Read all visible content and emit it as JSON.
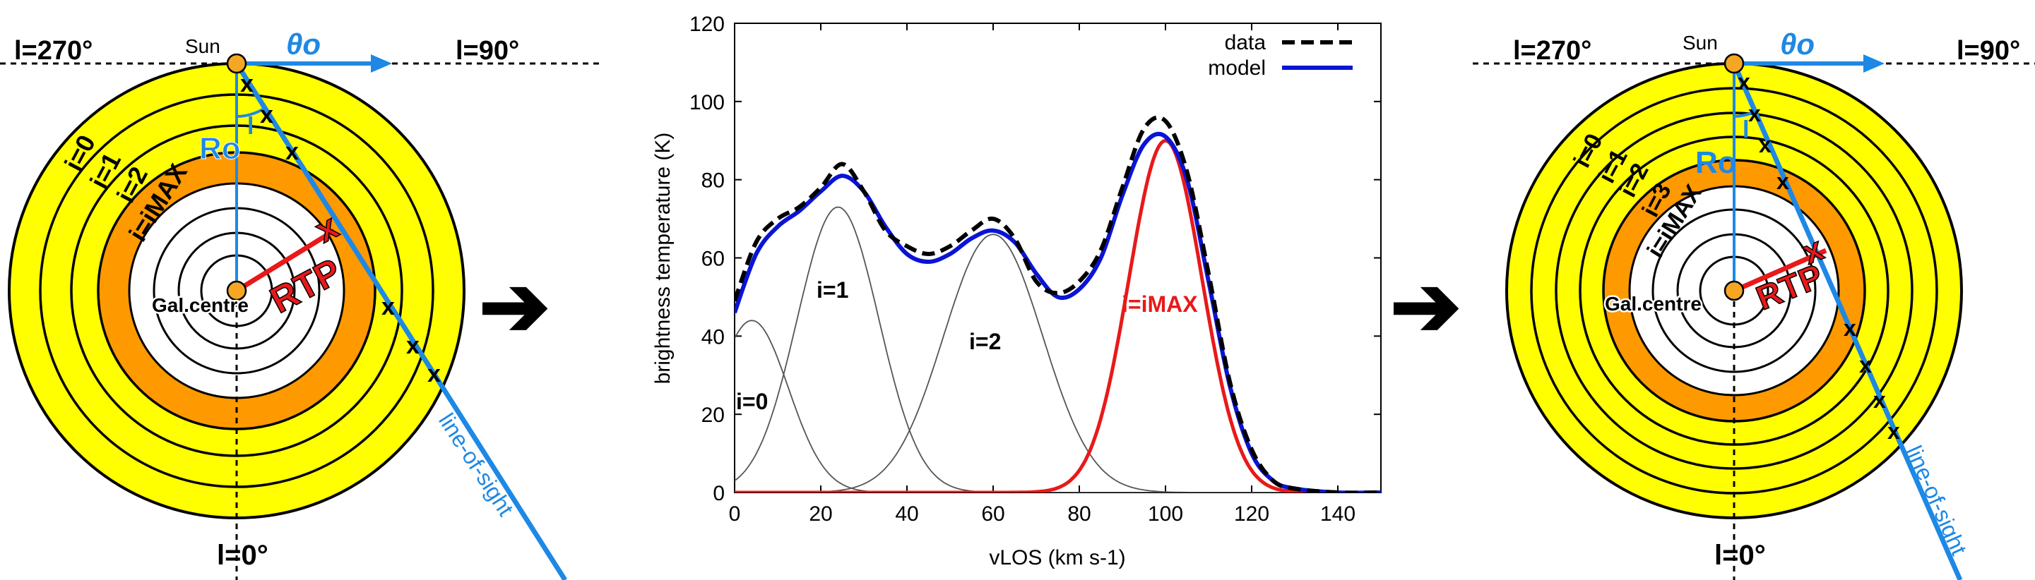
{
  "left_panel": {
    "label_l270": "l=270°",
    "label_l90": "l=90°",
    "label_l0": "l=0°",
    "label_sun": "Sun",
    "label_theta0": "θo",
    "label_r0": "Ro",
    "label_l": "l",
    "label_rtp": "RTP",
    "label_gal_centre": "Gal.centre",
    "label_los": "line-of-sight",
    "x_mark": "x",
    "ring_labels": [
      "i=0",
      "i=1",
      "i=2",
      "i=iMAX"
    ],
    "colors": {
      "ring_yellow": "#ffff00",
      "ring_orange": "#ff9900",
      "los": "#1e88e5",
      "rtp": "#e8191a",
      "sun": "#f5a623"
    }
  },
  "right_panel": {
    "label_l270": "l=270°",
    "label_l90": "l=90°",
    "label_l0": "l=0°",
    "label_sun": "Sun",
    "label_theta0": "θo",
    "label_r0": "Ro",
    "label_l": "l",
    "label_rtp": "RTP",
    "label_gal_centre": "Gal.centre",
    "label_los": "line-of-sight",
    "x_mark": "x",
    "ring_labels": [
      "i=0",
      "i=1",
      "i=2",
      "i=3",
      "i=iMAX"
    ]
  },
  "arrows": {
    "arrow_glyph": "➔"
  },
  "chart_data": {
    "type": "line",
    "xlabel": "vLOS (km s-1)",
    "ylabel": "brightness temperature (K)",
    "xlim": [
      0,
      150
    ],
    "ylim": [
      0,
      120
    ],
    "xticks": [
      0,
      20,
      40,
      60,
      80,
      100,
      120,
      140
    ],
    "yticks": [
      0,
      20,
      40,
      60,
      80,
      100,
      120
    ],
    "legend": {
      "position": "top-right",
      "entries": [
        "data",
        "model"
      ]
    },
    "components": [
      {
        "name": "i=0",
        "amplitude": 44,
        "center": 4,
        "sigma": 8.5
      },
      {
        "name": "i=1",
        "amplitude": 73,
        "center": 24,
        "sigma": 9.5
      },
      {
        "name": "i=2",
        "amplitude": 66,
        "center": 60,
        "sigma": 11.5
      },
      {
        "name": "i=iMAX",
        "amplitude": 90,
        "center": 100,
        "sigma": 8.5
      }
    ],
    "series": [
      {
        "name": "data",
        "style": "dashed",
        "color": "#000000",
        "x": [
          0,
          5,
          10,
          15,
          20,
          25,
          30,
          35,
          40,
          45,
          50,
          55,
          60,
          65,
          70,
          75,
          80,
          85,
          90,
          95,
          100,
          105,
          110,
          115,
          120,
          125,
          130,
          140,
          150
        ],
        "values": [
          49,
          64,
          70,
          73,
          78,
          84,
          77,
          67,
          63,
          61,
          63,
          67,
          70,
          65,
          54,
          51,
          54,
          62,
          78,
          93,
          95,
          82,
          56,
          28,
          11,
          3,
          1,
          0,
          0
        ]
      },
      {
        "name": "model",
        "style": "solid",
        "color": "#0a14d6",
        "x": [
          0,
          5,
          10,
          15,
          20,
          25,
          30,
          35,
          40,
          45,
          50,
          55,
          60,
          65,
          70,
          75,
          80,
          85,
          90,
          95,
          100,
          105,
          110,
          115,
          120,
          125,
          130,
          140,
          150
        ],
        "values": [
          46,
          61,
          68,
          72,
          77,
          81,
          77,
          68,
          61,
          59,
          61,
          65,
          67,
          64,
          56,
          50,
          52,
          60,
          76,
          89,
          91,
          80,
          54,
          27,
          10,
          3,
          1,
          0,
          0
        ]
      }
    ],
    "annotations": [
      "i=0",
      "i=1",
      "i=2",
      "i=iMAX"
    ]
  }
}
